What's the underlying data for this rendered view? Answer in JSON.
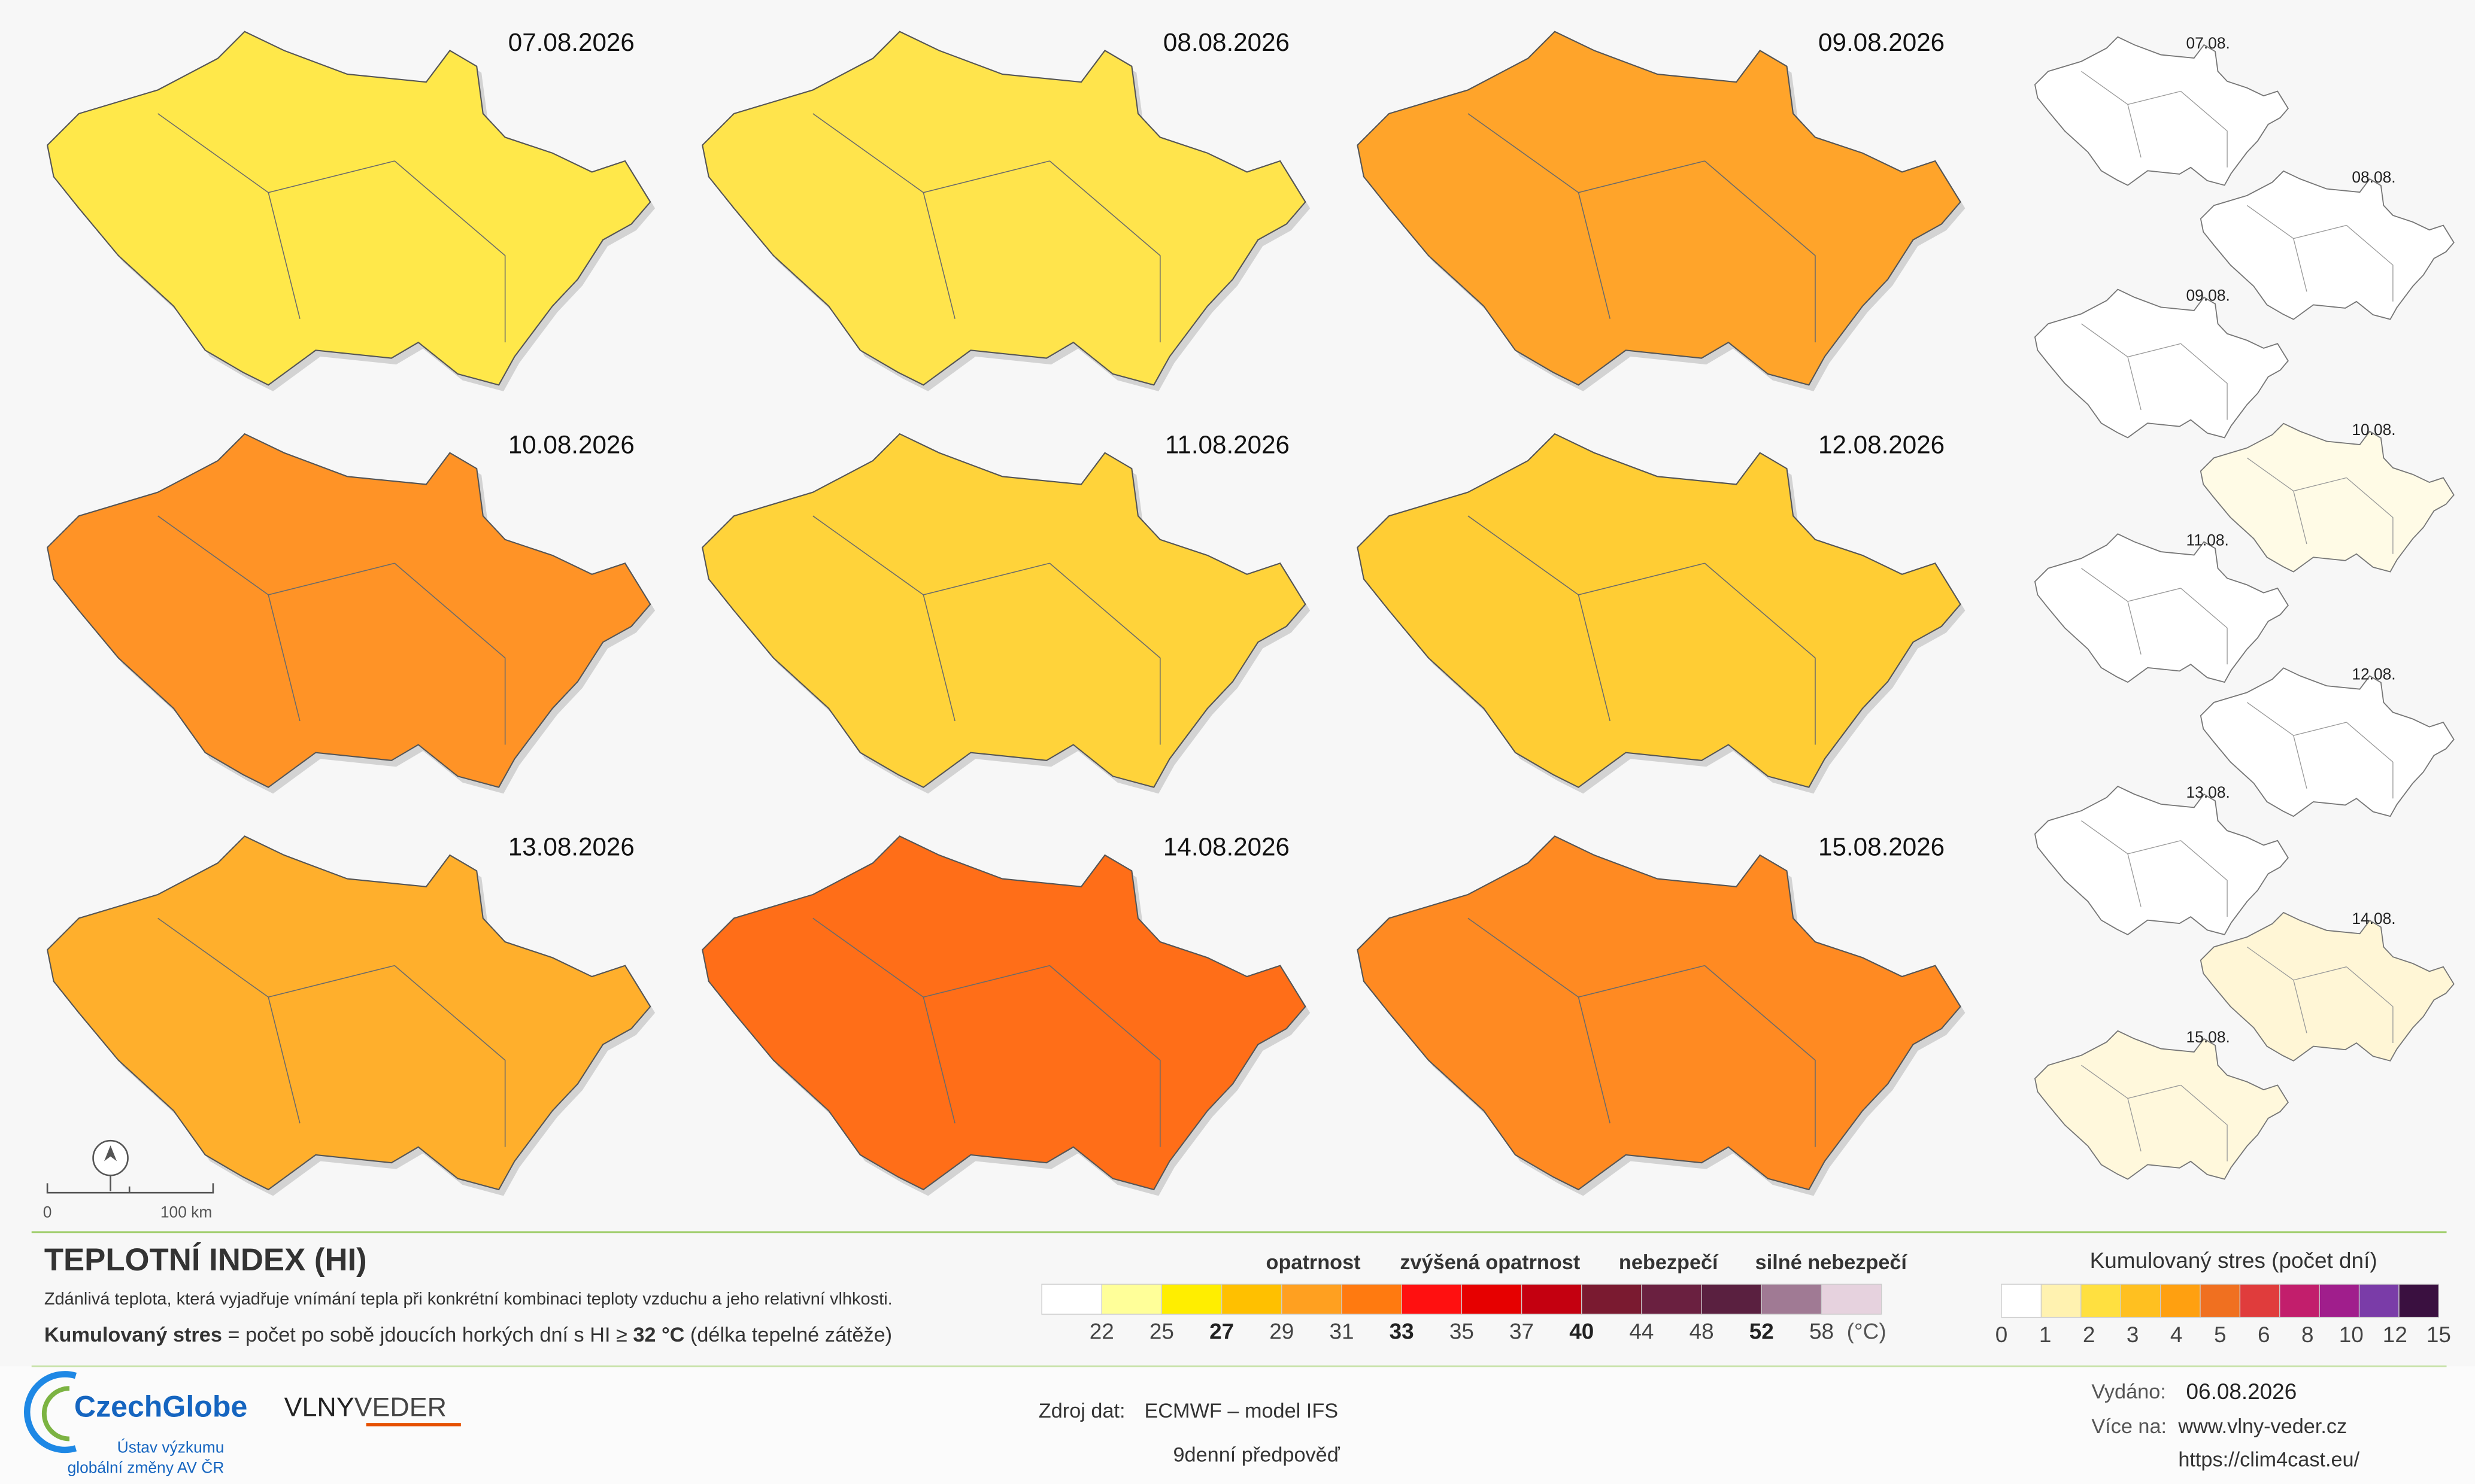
{
  "maps": [
    {
      "date": "07.08.2026",
      "color": "#ffe84a"
    },
    {
      "date": "08.08.2026",
      "color": "#ffe44c"
    },
    {
      "date": "09.08.2026",
      "color": "#ffa42a"
    },
    {
      "date": "10.08.2026",
      "color": "#ff9326"
    },
    {
      "date": "11.08.2026",
      "color": "#ffd33a"
    },
    {
      "date": "12.08.2026",
      "color": "#ffcd34"
    },
    {
      "date": "13.08.2026",
      "color": "#ffaf2c"
    },
    {
      "date": "14.08.2026",
      "color": "#ff6e18"
    },
    {
      "date": "15.08.2026",
      "color": "#ff8a22"
    }
  ],
  "cumulative_maps": [
    {
      "date": "07.08.",
      "color": "#ffffff"
    },
    {
      "date": "08.08.",
      "color": "#ffffff"
    },
    {
      "date": "09.08.",
      "color": "#ffffff"
    },
    {
      "date": "10.08.",
      "color": "#fffbe6"
    },
    {
      "date": "11.08.",
      "color": "#ffffff"
    },
    {
      "date": "12.08.",
      "color": "#ffffff"
    },
    {
      "date": "13.08.",
      "color": "#ffffff"
    },
    {
      "date": "14.08.",
      "color": "#fff6d6"
    },
    {
      "date": "15.08.",
      "color": "#fff8dc"
    }
  ],
  "scale_bar": {
    "start": "0",
    "end": "100 km"
  },
  "legend": {
    "title": "TEPLOTNÍ INDEX (HI)",
    "description": "Zdánlivá teplota, která vyjadřuje vnímání tepla při konkrétní kombinaci teploty vzduchu a jeho relativní vlhkosti.",
    "cumulative_note": [
      {
        "text": "Kumulovaný stres",
        "bold": true
      },
      {
        "text": " = počet po sobě jdoucích horkých dní s HI ≥ "
      },
      {
        "text": "32 °C",
        "bold": true
      },
      {
        "text": " (délka tepelné zátěže)"
      }
    ]
  },
  "hi_scale": {
    "categories": [
      "opatrnost",
      "zvýšená opatrnost",
      "nebezpečí",
      "silné nebezpečí"
    ],
    "colors": [
      "#ffffff",
      "#ffff99",
      "#ffee00",
      "#ffc000",
      "#ffa020",
      "#ff7a10",
      "#ff1010",
      "#e60000",
      "#c40010",
      "#7a1a30",
      "#6a2040",
      "#5a2040",
      "#a07a94",
      "#e6d2de"
    ],
    "ticks": [
      22,
      25,
      27,
      29,
      31,
      33,
      35,
      37,
      40,
      44,
      48,
      52,
      58
    ],
    "bold_ticks": [
      27,
      33,
      40,
      52
    ],
    "unit": "(°C)"
  },
  "stress_scale": {
    "title": "Kumulovaný stres (počet dní)",
    "colors": [
      "#ffffff",
      "#fff2b0",
      "#ffe040",
      "#ffc020",
      "#ffa010",
      "#f07020",
      "#e03c3c",
      "#c21e6c",
      "#a01e8c",
      "#7a3ca8",
      "#3a1040"
    ],
    "ticks": [
      0,
      1,
      2,
      3,
      4,
      5,
      6,
      8,
      10,
      12,
      15
    ]
  },
  "footer": {
    "org": "CzechGlobe",
    "org_line1": "Ústav výzkumu",
    "org_line2": "globální změny AV ČR",
    "brand_a": "VLNY",
    "brand_b": "VEDER",
    "source_label": "Zdroj dat:",
    "source": "ECMWF – model IFS",
    "forecast": "9denní předpověď",
    "issued_label": "Vydáno:",
    "issued": "06.08.2026",
    "more_label": "Více na:",
    "link1": "www.vlny-veder.cz",
    "link2": "https://clim4cast.eu/"
  }
}
